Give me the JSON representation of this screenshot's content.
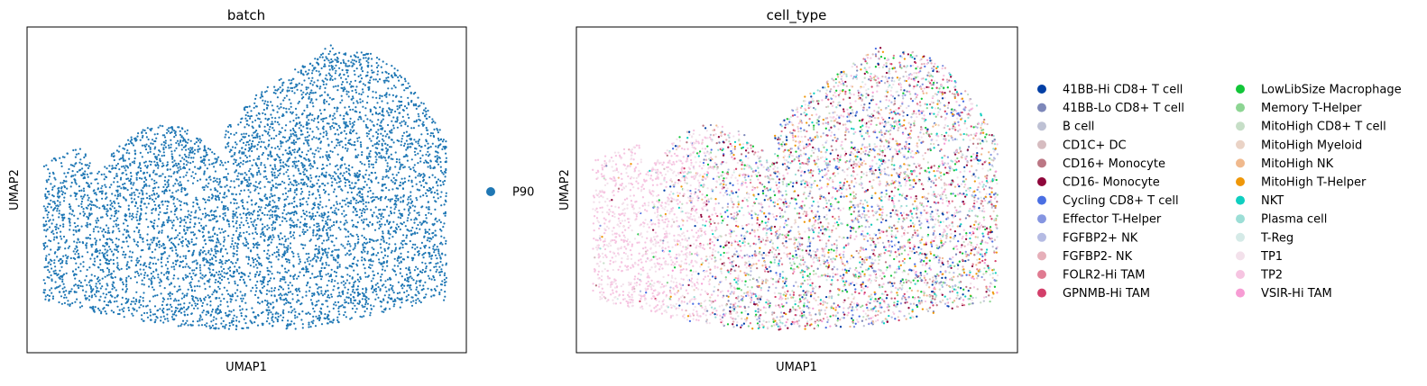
{
  "chart_data": [
    {
      "type": "scatter",
      "title": "batch",
      "xlabel": "UMAP1",
      "ylabel": "UMAP2",
      "grid": false,
      "legend_position": "right",
      "colors": {
        "P90": "#1f77b4"
      },
      "legend": [
        {
          "name": "P90",
          "color": "#1f77b4"
        }
      ],
      "n_points": 6000
    },
    {
      "type": "scatter",
      "title": "cell_type",
      "xlabel": "UMAP1",
      "ylabel": "UMAP2",
      "grid": false,
      "legend_position": "right",
      "legend_columns": 2,
      "legend": [
        {
          "name": "41BB-Hi CD8+ T cell",
          "color": "#023fa5"
        },
        {
          "name": "41BB-Lo CD8+ T cell",
          "color": "#7d87b9"
        },
        {
          "name": "B cell",
          "color": "#bec1d4"
        },
        {
          "name": "CD1C+ DC",
          "color": "#d6bcc0"
        },
        {
          "name": "CD16+ Monocyte",
          "color": "#bb7784"
        },
        {
          "name": "CD16- Monocyte",
          "color": "#8e063b"
        },
        {
          "name": "Cycling CD8+ T cell",
          "color": "#4a6fe3"
        },
        {
          "name": "Effector T-Helper",
          "color": "#8595e1"
        },
        {
          "name": "FGFBP2+ NK",
          "color": "#b5bbe3"
        },
        {
          "name": "FGFBP2- NK",
          "color": "#e6afb9"
        },
        {
          "name": "FOLR2-Hi TAM",
          "color": "#e07b91"
        },
        {
          "name": "GPNMB-Hi TAM",
          "color": "#d33f6a"
        },
        {
          "name": "LowLibSize Macrophage",
          "color": "#11c638"
        },
        {
          "name": "Memory T-Helper",
          "color": "#8dd593"
        },
        {
          "name": "MitoHigh CD8+ T cell",
          "color": "#c6dec7"
        },
        {
          "name": "MitoHigh Myeloid",
          "color": "#ead3c6"
        },
        {
          "name": "MitoHigh NK",
          "color": "#f0b98d"
        },
        {
          "name": "MitoHigh T-Helper",
          "color": "#ef9708"
        },
        {
          "name": "NKT",
          "color": "#0fcfc0"
        },
        {
          "name": "Plasma cell",
          "color": "#9cded6"
        },
        {
          "name": "T-Reg",
          "color": "#d5eae7"
        },
        {
          "name": "TP1",
          "color": "#f3e1eb"
        },
        {
          "name": "TP2",
          "color": "#f6c4e1"
        },
        {
          "name": "VSIR-Hi TAM",
          "color": "#f79cd4"
        }
      ],
      "n_points": 6000
    }
  ]
}
